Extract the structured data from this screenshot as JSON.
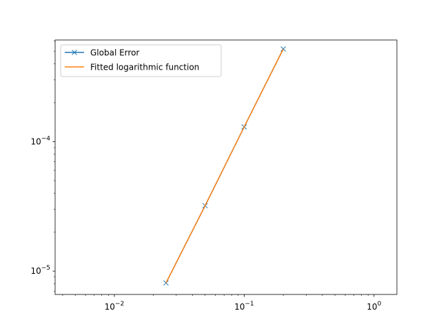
{
  "chart_data": {
    "type": "line",
    "title": "",
    "xlabel": "",
    "ylabel": "",
    "xscale": "log",
    "yscale": "log",
    "xlim": [
      0.0035,
      1.5
    ],
    "ylim": [
      6.6e-06,
      0.00061
    ],
    "grid": false,
    "legend_position": "top-left",
    "x_ticks": [
      {
        "value": 0.01,
        "base": "10",
        "exp": "−2"
      },
      {
        "value": 0.1,
        "base": "10",
        "exp": "−1"
      },
      {
        "value": 1,
        "base": "10",
        "exp": "0"
      }
    ],
    "y_ticks": [
      {
        "value": 1e-05,
        "base": "10",
        "exp": "−5"
      },
      {
        "value": 0.0001,
        "base": "10",
        "exp": "−4"
      }
    ],
    "series": [
      {
        "name": "Global Error",
        "color": "#1f77b4",
        "marker": "x",
        "x": [
          0.025,
          0.05,
          0.1,
          0.2
        ],
        "y": [
          8.1e-06,
          3.2e-05,
          0.00013,
          0.00052
        ]
      },
      {
        "name": "Fitted logarithmic function",
        "color": "#ff7f0e",
        "marker": "none",
        "x": [
          0.025,
          0.05,
          0.1,
          0.2
        ],
        "y": [
          8.1e-06,
          3.2e-05,
          0.00013,
          0.00052
        ]
      }
    ]
  }
}
